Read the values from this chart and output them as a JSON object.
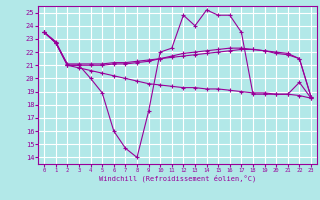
{
  "xlabel": "Windchill (Refroidissement éolien,°C)",
  "background_color": "#b2e8e8",
  "grid_color": "#ffffff",
  "line_color": "#990099",
  "x_ticks": [
    0,
    1,
    2,
    3,
    4,
    5,
    6,
    7,
    8,
    9,
    10,
    11,
    12,
    13,
    14,
    15,
    16,
    17,
    18,
    19,
    20,
    21,
    22,
    23
  ],
  "ylim": [
    13.5,
    25.5
  ],
  "xlim": [
    -0.5,
    23.5
  ],
  "yticks": [
    14,
    15,
    16,
    17,
    18,
    19,
    20,
    21,
    22,
    23,
    24,
    25
  ],
  "raw": [
    23.5,
    22.8,
    21.0,
    21.0,
    20.0,
    18.9,
    16.0,
    14.7,
    14.0,
    17.5,
    22.0,
    22.3,
    24.8,
    24.0,
    25.2,
    24.8,
    24.8,
    23.5,
    18.8,
    18.8,
    18.8,
    18.8,
    19.7,
    18.5
  ],
  "upper": [
    23.5,
    22.7,
    21.1,
    21.1,
    21.1,
    21.1,
    21.2,
    21.2,
    21.3,
    21.4,
    21.5,
    21.6,
    21.7,
    21.8,
    21.9,
    22.0,
    22.1,
    22.2,
    22.2,
    22.1,
    22.0,
    21.9,
    21.5,
    18.6
  ],
  "middle": [
    23.5,
    22.7,
    21.0,
    21.0,
    21.0,
    21.0,
    21.1,
    21.1,
    21.2,
    21.3,
    21.5,
    21.7,
    21.9,
    22.0,
    22.1,
    22.2,
    22.3,
    22.3,
    22.2,
    22.1,
    21.9,
    21.8,
    21.5,
    18.6
  ],
  "lower": [
    23.5,
    22.7,
    21.0,
    20.8,
    20.6,
    20.4,
    20.2,
    20.0,
    19.8,
    19.6,
    19.5,
    19.4,
    19.3,
    19.3,
    19.2,
    19.2,
    19.1,
    19.0,
    18.9,
    18.9,
    18.8,
    18.8,
    18.7,
    18.5
  ]
}
